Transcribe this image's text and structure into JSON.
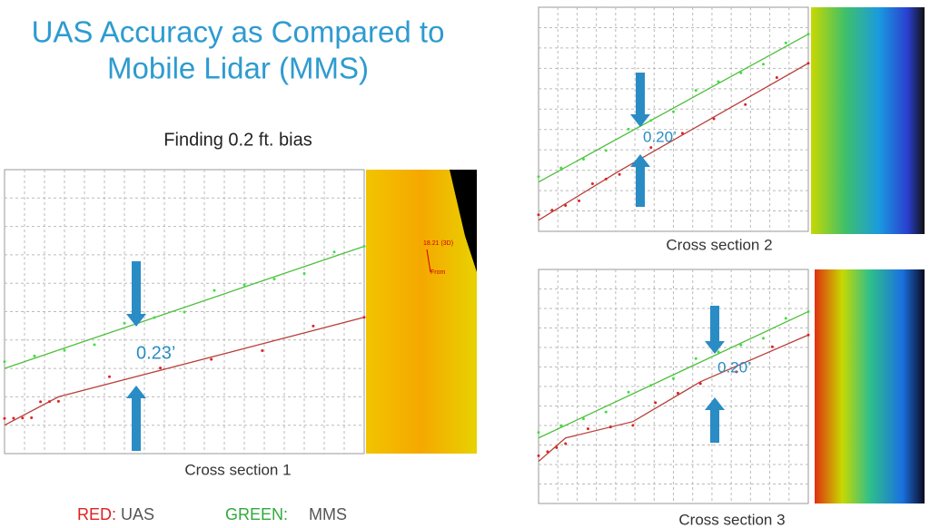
{
  "slide": {
    "title": [
      "UAS Accuracy as Compared to",
      "Mobile Lidar (MMS)"
    ],
    "subtitle": "Finding 0.2 ft. bias",
    "legend": [
      {
        "label": "RED:",
        "text": "UAS"
      },
      {
        "label": "GREEN:",
        "text": "MMS"
      }
    ],
    "panels": [
      {
        "caption": "Cross section  1",
        "offset": "0.23’",
        "map_labels": [
          "18.21 (3D)",
          "From"
        ]
      },
      {
        "caption": "Cross section 2",
        "offset": "0.20’"
      },
      {
        "caption": "Cross section 3",
        "offset": "0.20’"
      }
    ]
  }
}
